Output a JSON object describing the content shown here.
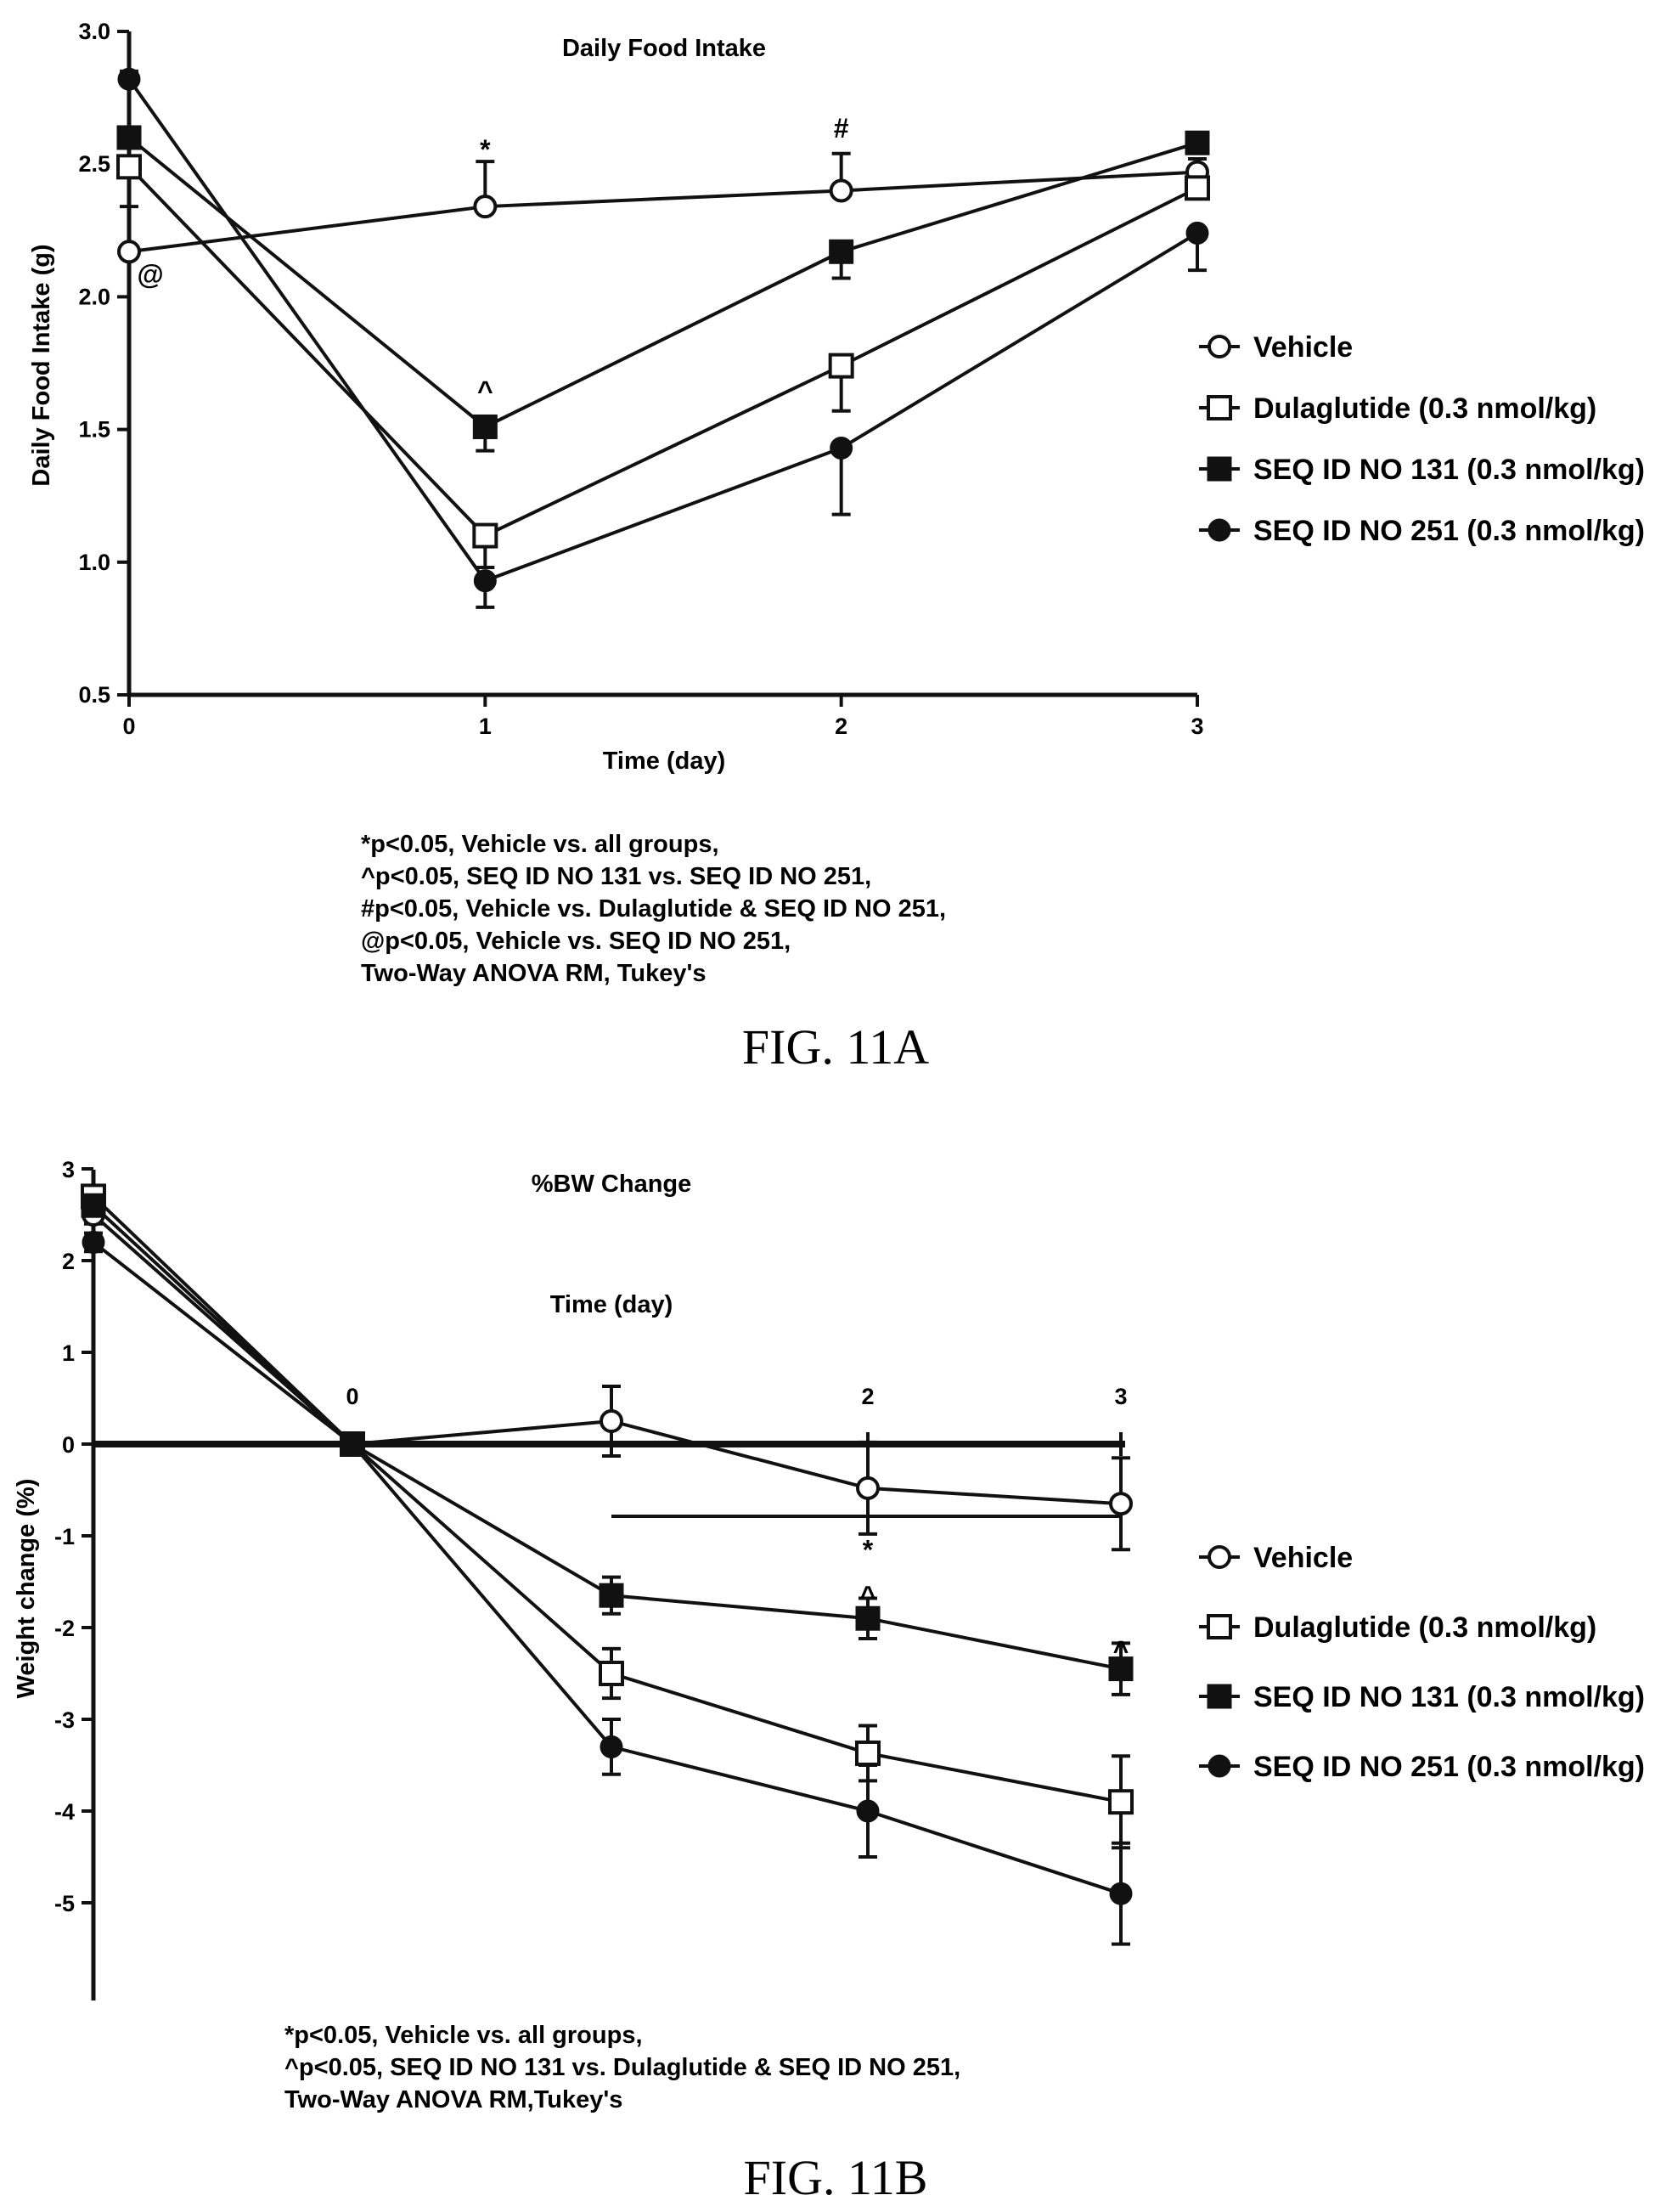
{
  "chart_data": [
    {
      "type": "line",
      "title": "Daily Food Intake",
      "xlabel": "Time (day)",
      "ylabel": "Daily Food Intake (g)",
      "x": [
        0,
        1,
        2,
        3
      ],
      "xticks": [
        "0",
        "1",
        "2",
        "3"
      ],
      "ylim": [
        0.5,
        3.0
      ],
      "yticks": [
        "0.5",
        "1.0",
        "1.5",
        "2.0",
        "2.5",
        "3.0"
      ],
      "legend_position": "right",
      "series": [
        {
          "name": "Vehicle",
          "marker": "open-circle",
          "values": [
            2.17,
            2.34,
            2.4,
            2.47
          ],
          "errors": [
            0.17,
            0.17,
            0.14,
            0.05
          ]
        },
        {
          "name": "Dulaglutide (0.3 nmol/kg)",
          "marker": "open-square",
          "values": [
            2.49,
            1.1,
            1.74,
            2.41
          ],
          "errors": [
            0.03,
            0.12,
            0.17,
            0.04
          ]
        },
        {
          "name": "SEQ ID NO 131 (0.3 nmol/kg)",
          "marker": "filled-square",
          "values": [
            2.6,
            1.51,
            2.17,
            2.58
          ],
          "errors": [
            0.03,
            0.09,
            0.1,
            0.03
          ]
        },
        {
          "name": "SEQ ID NO 251 (0.3 nmol/kg)",
          "marker": "filled-circle",
          "values": [
            2.82,
            0.93,
            1.43,
            2.24
          ],
          "errors": [
            0.03,
            0.1,
            0.25,
            0.14
          ]
        }
      ],
      "annotations": [
        {
          "text": "*",
          "x": 1,
          "y": 2.52
        },
        {
          "text": "#",
          "x": 2,
          "y": 2.6
        },
        {
          "text": "^",
          "x": 1,
          "y": 1.61
        },
        {
          "text": "@",
          "x": 0.06,
          "y": 2.05
        }
      ],
      "notes": [
        "*p<0.05, Vehicle vs. all groups,",
        "^p<0.05, SEQ ID NO 131 vs. SEQ ID NO 251,",
        "#p<0.05, Vehicle vs. Dulaglutide & SEQ ID NO 251,",
        "@p<0.05, Vehicle vs. SEQ ID NO 251,",
        "Two-Way ANOVA RM, Tukey's"
      ],
      "caption": "FIG. 11A"
    },
    {
      "type": "line",
      "title": "%BW Change",
      "xlabel": "Time (day)",
      "ylabel": "Weight change (%)",
      "x": [
        -1,
        0,
        1,
        2,
        3
      ],
      "xticks": [
        "0",
        "2",
        "3"
      ],
      "ylim": [
        -6,
        3
      ],
      "yticks": [
        "3",
        "2",
        "1",
        "0",
        "-1",
        "-2",
        "-3",
        "-4",
        "-5"
      ],
      "legend_position": "right",
      "series": [
        {
          "name": "Vehicle",
          "marker": "open-circle",
          "values": [
            2.5,
            0,
            0.25,
            -0.48,
            -0.65
          ],
          "errors": [
            0.1,
            0,
            0.38,
            0.5,
            0.5
          ]
        },
        {
          "name": "Dulaglutide (0.3 nmol/kg)",
          "marker": "open-square",
          "values": [
            2.7,
            0,
            -2.5,
            -3.37,
            -3.9
          ],
          "errors": [
            0.1,
            0,
            0.27,
            0.3,
            0.5
          ]
        },
        {
          "name": "SEQ ID NO 131 (0.3 nmol/kg)",
          "marker": "filled-square",
          "values": [
            2.6,
            0,
            -1.65,
            -1.9,
            -2.45
          ],
          "errors": [
            0.1,
            0,
            0.2,
            0.22,
            0.28
          ]
        },
        {
          "name": "SEQ ID NO 251 (0.3 nmol/kg)",
          "marker": "filled-circle",
          "values": [
            2.2,
            0,
            -3.3,
            -4.0,
            -4.9
          ],
          "errors": [
            0.1,
            0,
            0.3,
            0.5,
            0.55
          ]
        }
      ],
      "annotations": [
        {
          "text": "*",
          "x": 2,
          "y": -1.05
        },
        {
          "text": "^",
          "x": 2,
          "y": -1.55
        },
        {
          "text": "^",
          "x": 3,
          "y": -2.15
        }
      ],
      "notes": [
        "*p<0.05, Vehicle vs. all groups,",
        "^p<0.05, SEQ ID NO 131 vs. Dulaglutide & SEQ ID NO 251,",
        "Two-Way ANOVA RM,Tukey's"
      ],
      "caption": "FIG. 11B"
    }
  ]
}
